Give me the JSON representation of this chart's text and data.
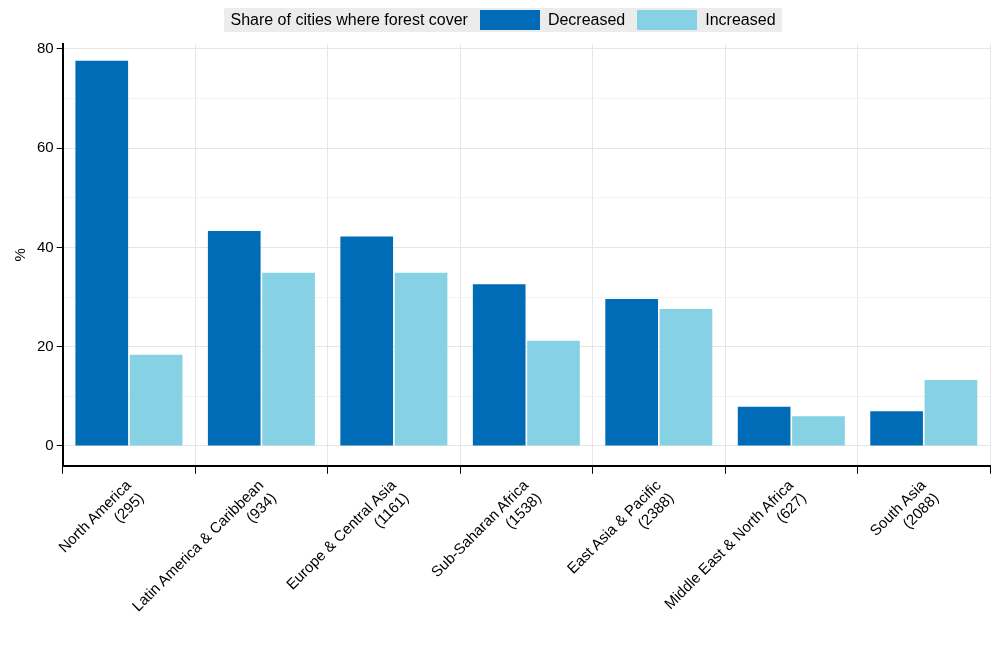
{
  "chart_data": {
    "type": "bar",
    "legend_title": "Share of cities where forest cover",
    "ylabel": "%",
    "categories": [
      "North America\n(295)",
      "Latin America & Caribbean\n(934)",
      "Europe & Central Asia\n(1161)",
      "Sub-Saharan Africa\n(1538)",
      "East Asia & Pacific\n(2388)",
      "Middle East & North Africa\n(627)",
      "South Asia\n(2088)"
    ],
    "series": [
      {
        "name": "Decreased",
        "color": "#006bb6",
        "values": [
          77.6,
          43.3,
          42.2,
          32.6,
          29.6,
          7.9,
          7.0
        ]
      },
      {
        "name": "Increased",
        "color": "#86d1e3",
        "values": [
          18.4,
          34.9,
          34.9,
          21.2,
          27.6,
          6.0,
          13.3
        ]
      }
    ],
    "ylim": [
      -4,
      81
    ],
    "yticks": [
      0,
      {
        "value": 10,
        "label": null
      },
      20,
      {
        "value": 30,
        "label": null
      },
      40,
      {
        "value": 50,
        "label": null
      },
      60,
      {
        "value": 70,
        "label": null
      },
      80
    ],
    "grid": true,
    "legend": "top"
  }
}
